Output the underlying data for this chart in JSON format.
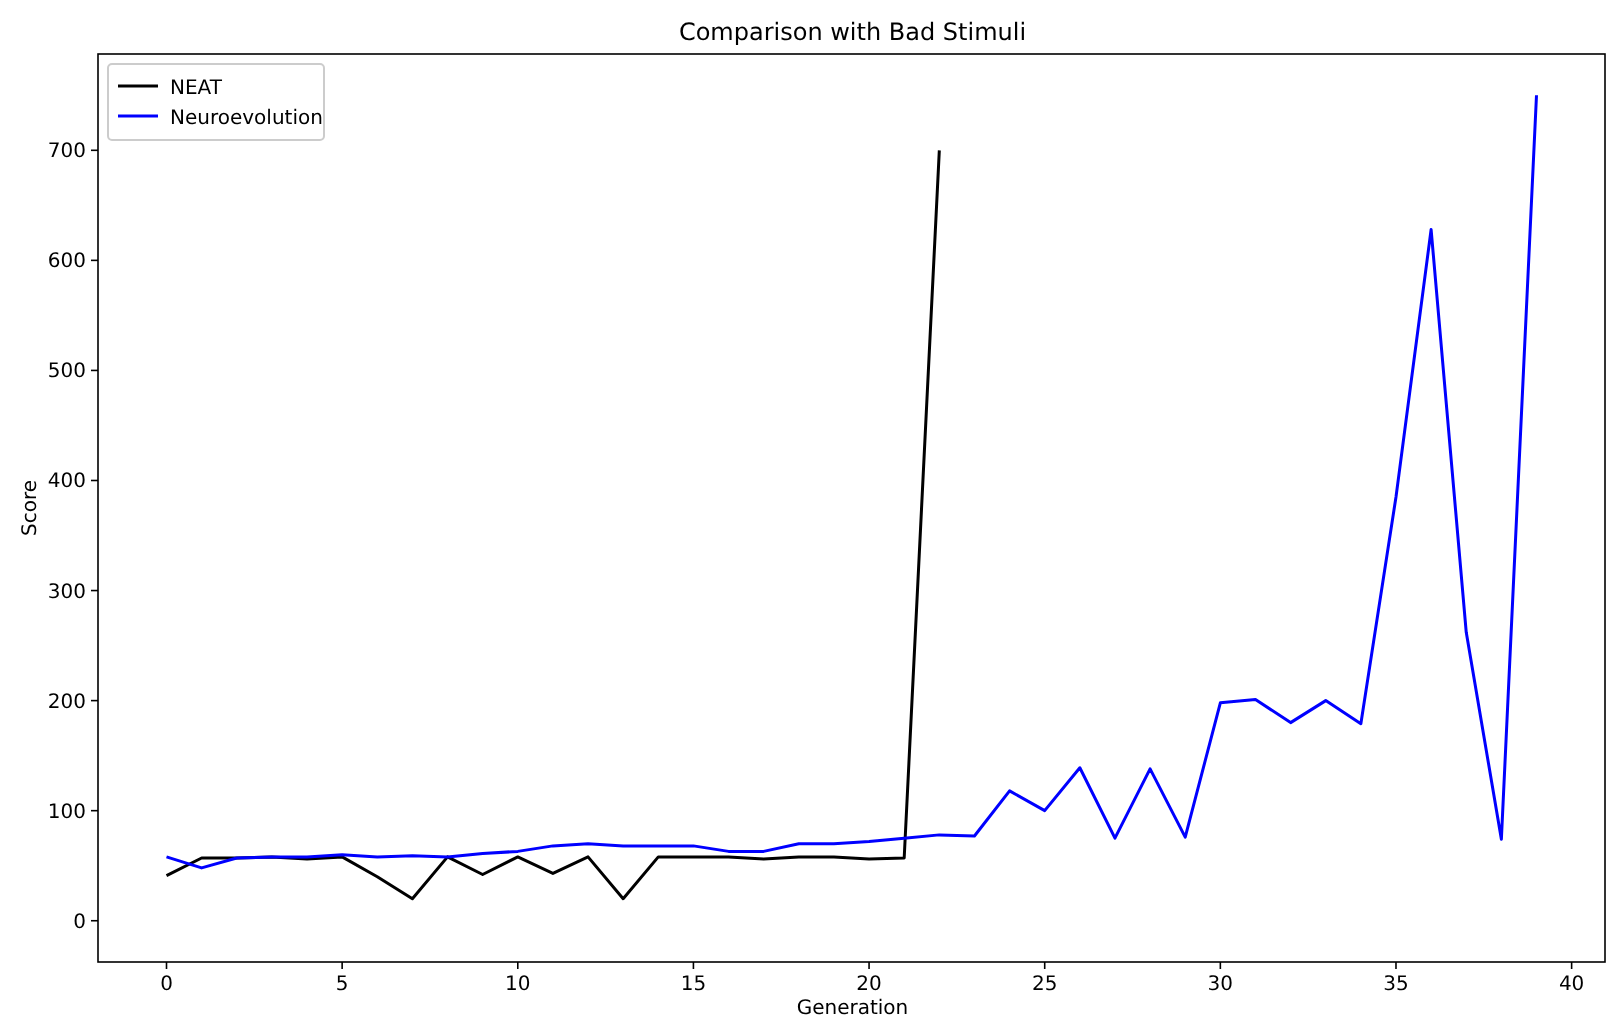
{
  "chart_data": {
    "type": "line",
    "title": "Comparison with Bad Stimuli",
    "xlabel": "Generation",
    "ylabel": "Score",
    "legend": "top left",
    "grid": false,
    "xlim": [
      -1.95,
      40.95
    ],
    "ylim": [
      -37.5,
      787.5
    ],
    "xticks": [
      0,
      5,
      10,
      15,
      20,
      25,
      30,
      35,
      40
    ],
    "yticks": [
      0,
      100,
      200,
      300,
      400,
      500,
      600,
      700
    ],
    "series": [
      {
        "name": "NEAT",
        "color": "#000000",
        "x": [
          0,
          1,
          2,
          3,
          4,
          5,
          6,
          7,
          8,
          9,
          10,
          11,
          12,
          13,
          14,
          15,
          16,
          17,
          18,
          19,
          20,
          21,
          22
        ],
        "values": [
          41,
          57,
          57,
          58,
          56,
          58,
          40,
          20,
          58,
          42,
          58,
          43,
          58,
          20,
          58,
          58,
          58,
          56,
          58,
          58,
          56,
          57,
          700
        ]
      },
      {
        "name": "Neuroevolution",
        "color": "#0000ff",
        "x": [
          0,
          1,
          2,
          3,
          4,
          5,
          6,
          7,
          8,
          9,
          10,
          11,
          12,
          13,
          14,
          15,
          16,
          17,
          18,
          19,
          20,
          21,
          22,
          23,
          24,
          25,
          26,
          27,
          28,
          29,
          30,
          31,
          32,
          33,
          34,
          35,
          36,
          37,
          38,
          39
        ],
        "values": [
          58,
          48,
          57,
          58,
          58,
          60,
          58,
          59,
          58,
          61,
          63,
          68,
          70,
          68,
          68,
          68,
          63,
          63,
          70,
          70,
          72,
          75,
          78,
          77,
          118,
          100,
          139,
          75,
          138,
          76,
          198,
          201,
          180,
          200,
          179,
          385,
          628,
          262,
          74,
          750
        ]
      }
    ]
  }
}
